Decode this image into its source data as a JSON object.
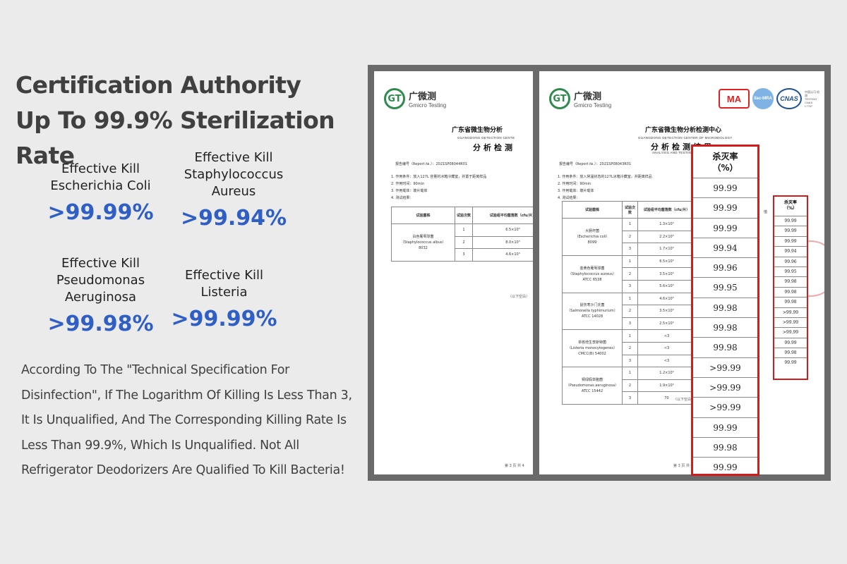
{
  "headline": {
    "line1": "Certification Authority",
    "line2": "Up To 99.9% Sterilization Rate"
  },
  "stats": [
    {
      "label": [
        "Effective Kill",
        "Escherichia Coli"
      ],
      "value": ">99.99%"
    },
    {
      "label": [
        "Effective Kill",
        "Staphylococcus",
        "Aureus"
      ],
      "value": ">99.94%"
    },
    {
      "label": [
        "Effective Kill",
        "Pseudomonas",
        "Aeruginosa"
      ],
      "value": ">99.98%"
    },
    {
      "label": [
        "Effective Kill",
        "Listeria"
      ],
      "value": ">99.99%"
    }
  ],
  "description": "According To The \"Technical Specification For Disinfection\", If The Logarithm Of Killing Is Less Than 3, It Is Unqualified, And The Corresponding Killing Rate Is Less Than 99.9%, Which Is Unqualified. Not All Refrigerator Deodorizers Are Qualified To Kill Bacteria!",
  "colors": {
    "accent": "#2f5fc4",
    "highlight": "#d21c1c",
    "heading": "#404040"
  },
  "doc_left": {
    "logo_cn": "广微测",
    "logo_en": "Gmicro Testing",
    "title_cn": "广东省微生物分析",
    "subtitle_en": "GUANGDONG DETECTION CENTE",
    "section_cn": "分析检测",
    "report_no": "报告编号（Report №.）：2021SP08044R01",
    "lines": [
      "1. 作用条件：放入127L 容量的冰箱冷藏室，并置于距离样品",
      "2. 作用时间：90min",
      "3. 作用载体：玻片载体",
      "4. 测试结果："
    ],
    "table_head": [
      "试验菌株",
      "试验次数",
      "试验组平均菌落数（cfu/片）"
    ],
    "strain": [
      "白色葡萄球菌",
      "（Staphylococcus albus）",
      "8032"
    ],
    "rows": [
      [
        "1",
        "6.5×10⁵"
      ],
      [
        "2",
        "8.0×10⁵"
      ],
      [
        "3",
        "4.6×10⁵"
      ]
    ],
    "blank_note": "（以下空白）",
    "page": "第 3 页 共 4"
  },
  "doc_right": {
    "logo_cn": "广微测",
    "logo_en": "Gmicro Testing",
    "badge_cma": "MA",
    "badge_ilac": "ilac-MRA",
    "badge_cnas": "CNAS",
    "badge_small": "中国认可 检测 TESTING CNAS L7767",
    "title_cn": "广东省微生物分析检测中心",
    "subtitle_en": "GUANGDONG DETECTION CENTER OF MICROBIOLOGY",
    "section_cn": "分析检测结果",
    "subtitle2_en": "ANALYSIS AND TESTING RESULTS",
    "report_no": "报告编号（Report №.）：2021SP08043R01",
    "lines": [
      "1. 作用条件：放入常温状态的127L冰箱冷藏室，并距离样品",
      "2. 作用时间：90min",
      "3. 作用载体：玻片载体",
      "4. 测试结果："
    ],
    "table_head": [
      "试验菌株",
      "试验次数",
      "试验组平均菌落数（cfu/片）"
    ],
    "strains": [
      {
        "name": [
          "大肠杆菌",
          "（Escherichia coli）",
          "8099"
        ],
        "rows": [
          [
            "1",
            "1.3×10⁵"
          ],
          [
            "2",
            "2.2×10⁵"
          ],
          [
            "3",
            "1.7×10⁵"
          ]
        ]
      },
      {
        "name": [
          "金黄色葡萄球菌",
          "（Staphylococcus aureus）",
          "ATCC 6538"
        ],
        "rows": [
          [
            "1",
            "6.5×10⁵"
          ],
          [
            "2",
            "3.5×10⁵"
          ],
          [
            "3",
            "5.6×10⁵"
          ]
        ]
      },
      {
        "name": [
          "鼠伤寒沙门氏菌",
          "（Salmonella typhimurium）",
          "ATCC 14028"
        ],
        "rows": [
          [
            "1",
            "4.6×10⁵"
          ],
          [
            "2",
            "3.5×10⁵"
          ],
          [
            "3",
            "2.5×10⁵"
          ]
        ]
      },
      {
        "name": [
          "单核增生李斯特菌",
          "（Listeria monocytogenes）",
          "CMCC(B) 54002"
        ],
        "rows": [
          [
            "1",
            "<3"
          ],
          [
            "2",
            "<3"
          ],
          [
            "3",
            "<3"
          ]
        ]
      },
      {
        "name": [
          "铜绿假单胞菌",
          "（Pseudomonas aeruginosa）",
          "ATCC 15442"
        ],
        "rows": [
          [
            "1",
            "1.2×10⁵"
          ],
          [
            "2",
            "1.9×10⁵"
          ],
          [
            "3",
            "70"
          ]
        ]
      }
    ],
    "blank_note": "（以下空白）",
    "page": "第 3 页 共 4",
    "kill_head": [
      "杀灭率",
      "（%）"
    ],
    "kill_rates": [
      "99.99",
      "99.99",
      "99.99",
      "99.94",
      "99.96",
      "99.95",
      "99.98",
      "99.98",
      "99.98",
      ">99.99",
      ">99.99",
      ">99.99",
      "99.99",
      "99.98",
      "99.99"
    ],
    "small_kill_head": [
      "杀灭率",
      "（%）"
    ],
    "small_kill_rates": [
      "99.99",
      "99.99",
      "99.99",
      "99.94",
      "99.96",
      "99.95",
      "99.98",
      "99.98",
      "99.98",
      ">99.99",
      ">99.99",
      ">99.99",
      "99.99",
      "99.98",
      "99.99"
    ],
    "partial_head": "值"
  }
}
